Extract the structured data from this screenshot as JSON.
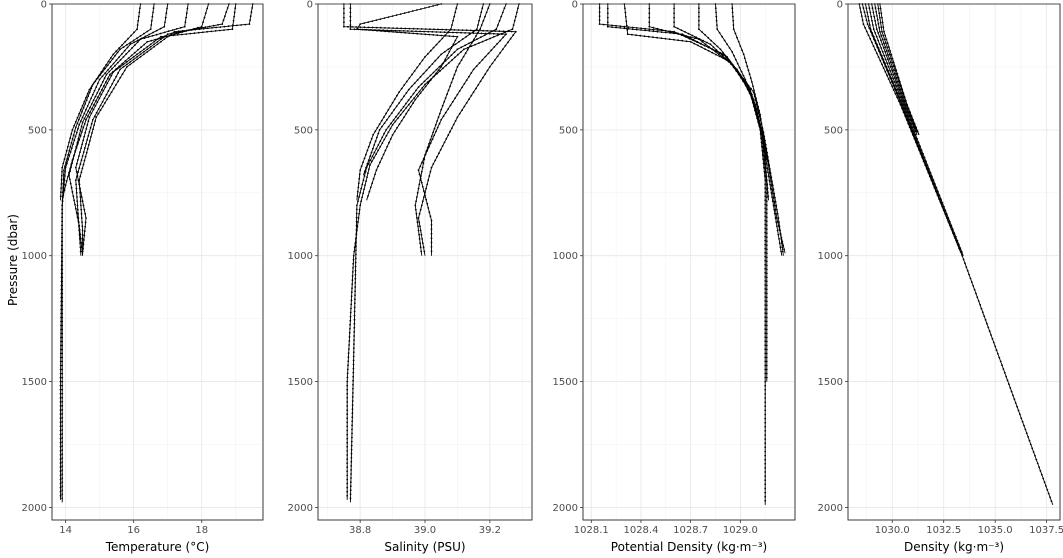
{
  "chart_data": [
    {
      "type": "line",
      "xlabel": "Temperature (°C)",
      "ylabel": "Pressure (dbar)",
      "xlim": [
        13.6,
        19.8
      ],
      "ylim": [
        0,
        2050
      ],
      "y_reversed": true,
      "grid": true,
      "x_ticks": [
        "14",
        "16",
        "18"
      ],
      "x_tick_values": [
        14,
        16,
        18
      ],
      "y_ticks": [
        "0",
        "500",
        "1000",
        "1500",
        "2000"
      ],
      "y_tick_values": [
        0,
        500,
        1000,
        1500,
        2000
      ],
      "series": [
        {
          "x": [
            19.5,
            19.4,
            17.2,
            15.8,
            14.9,
            14.4,
            14.5,
            14.5
          ],
          "y": [
            0,
            80,
            110,
            250,
            450,
            700,
            900,
            1000
          ]
        },
        {
          "x": [
            18.8,
            18.6,
            17.0,
            15.6,
            14.8,
            14.3,
            14.4,
            14.45
          ],
          "y": [
            0,
            80,
            120,
            260,
            460,
            700,
            900,
            1000
          ]
        },
        {
          "x": [
            17.6,
            17.5,
            16.2,
            15.2,
            14.5,
            14.1,
            14.4,
            14.5
          ],
          "y": [
            0,
            90,
            140,
            280,
            470,
            680,
            880,
            1000
          ]
        },
        {
          "x": [
            17.0,
            16.9,
            15.9,
            15.0,
            14.4,
            14.0,
            13.9,
            13.85,
            13.85
          ],
          "y": [
            0,
            90,
            160,
            300,
            480,
            650,
            800,
            1500,
            1970
          ]
        },
        {
          "x": [
            16.6,
            16.5,
            15.6,
            14.8,
            14.3,
            13.95,
            13.9,
            13.9,
            13.9
          ],
          "y": [
            0,
            100,
            180,
            320,
            490,
            660,
            800,
            1500,
            1980
          ]
        },
        {
          "x": [
            16.2,
            16.1,
            15.4,
            14.7,
            14.2,
            13.9,
            13.85
          ],
          "y": [
            0,
            100,
            200,
            340,
            500,
            650,
            780
          ]
        },
        {
          "x": [
            18.2,
            18.0,
            16.4,
            15.3,
            14.6,
            14.2,
            14.0,
            13.9
          ],
          "y": [
            0,
            90,
            150,
            280,
            460,
            620,
            720,
            780
          ]
        },
        {
          "x": [
            19.0,
            18.9,
            16.8,
            15.4,
            14.7,
            14.3,
            14.6,
            14.5
          ],
          "y": [
            0,
            100,
            130,
            270,
            450,
            650,
            850,
            990
          ]
        }
      ]
    },
    {
      "type": "line",
      "xlabel": "Salinity (PSU)",
      "xlim": [
        38.67,
        39.33
      ],
      "ylim": [
        0,
        2050
      ],
      "y_reversed": true,
      "grid": true,
      "x_ticks": [
        "38.8",
        "39.0",
        "39.2"
      ],
      "x_tick_values": [
        38.8,
        39.0,
        39.2
      ],
      "y_ticks": [
        "0",
        "500",
        "1000",
        "1500",
        "2000"
      ],
      "y_tick_values": [
        0,
        500,
        1000,
        1500,
        2000
      ],
      "series": [
        {
          "x": [
            38.75,
            38.75,
            39.28,
            39.2,
            39.1,
            39.02,
            38.98,
            39.0
          ],
          "y": [
            0,
            90,
            110,
            250,
            450,
            650,
            850,
            1000
          ]
        },
        {
          "x": [
            38.77,
            38.77,
            39.25,
            39.15,
            39.05,
            38.98,
            39.02,
            39.02
          ],
          "y": [
            0,
            100,
            120,
            260,
            460,
            660,
            860,
            1000
          ]
        },
        {
          "x": [
            39.29,
            39.27,
            39.12,
            39.0,
            38.9,
            38.83,
            38.8,
            38.78,
            38.76,
            38.76
          ],
          "y": [
            0,
            100,
            180,
            320,
            480,
            640,
            800,
            1000,
            1500,
            1970
          ]
        },
        {
          "x": [
            39.25,
            39.22,
            39.1,
            38.98,
            38.88,
            38.82,
            38.79,
            38.78,
            38.77
          ],
          "y": [
            0,
            100,
            180,
            330,
            500,
            650,
            800,
            1400,
            1980
          ]
        },
        {
          "x": [
            39.18,
            39.16,
            39.05,
            38.95,
            38.86,
            38.81
          ],
          "y": [
            0,
            100,
            200,
            340,
            500,
            680
          ]
        },
        {
          "x": [
            39.1,
            39.08,
            39.0,
            38.92,
            38.84,
            38.8,
            38.79
          ],
          "y": [
            0,
            100,
            210,
            350,
            520,
            660,
            780
          ]
        },
        {
          "x": [
            39.05,
            38.8,
            38.79,
            39.1,
            39.05,
            38.97,
            38.9,
            38.85,
            38.82
          ],
          "y": [
            0,
            80,
            100,
            130,
            250,
            380,
            520,
            660,
            780
          ]
        },
        {
          "x": [
            39.2,
            39.17,
            39.1,
            39.05,
            39.0,
            38.97,
            38.99
          ],
          "y": [
            0,
            100,
            250,
            420,
            600,
            800,
            1000
          ]
        }
      ]
    },
    {
      "type": "line",
      "xlabel": "Potential Density  (kg·m⁻³)",
      "xlim": [
        1028.05,
        1029.33
      ],
      "ylim": [
        0,
        2050
      ],
      "y_reversed": true,
      "grid": true,
      "x_ticks": [
        "1028.1",
        "1028.4",
        "1028.7",
        "1029.0"
      ],
      "x_tick_values": [
        1028.1,
        1028.4,
        1028.7,
        1029.0
      ],
      "y_ticks": [
        "0",
        "500",
        "1000",
        "1500",
        "2000"
      ],
      "y_tick_values": [
        0,
        500,
        1000,
        1500,
        2000
      ],
      "series": [
        {
          "x": [
            1028.15,
            1028.15,
            1028.6,
            1028.9,
            1029.05,
            1029.12,
            1029.15,
            1029.15,
            1029.15
          ],
          "y": [
            0,
            80,
            110,
            200,
            330,
            500,
            700,
            1500,
            1990
          ]
        },
        {
          "x": [
            1028.2,
            1028.2,
            1028.65,
            1028.92,
            1029.06,
            1029.13,
            1029.16,
            1029.16
          ],
          "y": [
            0,
            90,
            120,
            210,
            340,
            520,
            720,
            1500
          ]
        },
        {
          "x": [
            1028.45,
            1028.45,
            1028.75,
            1028.95,
            1029.07,
            1029.13,
            1029.2,
            1029.25
          ],
          "y": [
            0,
            90,
            140,
            240,
            360,
            520,
            800,
            1000
          ]
        },
        {
          "x": [
            1028.6,
            1028.6,
            1028.82,
            1028.98,
            1029.08,
            1029.14,
            1029.17
          ],
          "y": [
            0,
            90,
            160,
            260,
            380,
            540,
            780
          ]
        },
        {
          "x": [
            1028.75,
            1028.75,
            1028.88,
            1029.0,
            1029.09,
            1029.15,
            1029.22,
            1029.27
          ],
          "y": [
            0,
            100,
            180,
            280,
            400,
            560,
            850,
            990
          ]
        },
        {
          "x": [
            1028.85,
            1028.86,
            1028.95,
            1029.03,
            1029.1,
            1029.15
          ],
          "y": [
            0,
            100,
            190,
            300,
            420,
            600
          ]
        },
        {
          "x": [
            1028.95,
            1028.96,
            1029.02,
            1029.07,
            1029.12,
            1029.16
          ],
          "y": [
            0,
            100,
            200,
            310,
            440,
            620
          ]
        },
        {
          "x": [
            1028.3,
            1028.32,
            1028.7,
            1028.94,
            1029.08,
            1029.14,
            1029.23,
            1029.26
          ],
          "y": [
            0,
            120,
            150,
            230,
            350,
            510,
            850,
            1000
          ]
        }
      ]
    },
    {
      "type": "line",
      "xlabel": "Density (kg·m⁻³)",
      "xlim": [
        1027.85,
        1038.15
      ],
      "ylim": [
        0,
        2050
      ],
      "y_reversed": true,
      "grid": true,
      "x_ticks": [
        "1030.0",
        "1032.5",
        "1035.0",
        "1037.5"
      ],
      "x_tick_values": [
        1030.0,
        1032.5,
        1035.0,
        1037.5
      ],
      "y_ticks": [
        "0",
        "500",
        "1000",
        "1500",
        "2000"
      ],
      "y_tick_values": [
        0,
        500,
        1000,
        1500,
        2000
      ],
      "series": [
        {
          "x": [
            1028.4,
            1028.6,
            1030.4,
            1033.4,
            1037.8
          ],
          "y": [
            0,
            80,
            400,
            1000,
            1990
          ]
        },
        {
          "x": [
            1028.55,
            1028.8,
            1030.45,
            1033.35
          ],
          "y": [
            0,
            80,
            400,
            990
          ]
        },
        {
          "x": [
            1028.7,
            1028.95,
            1030.5,
            1033.4
          ],
          "y": [
            0,
            100,
            400,
            1000
          ]
        },
        {
          "x": [
            1028.85,
            1029.1,
            1030.55,
            1033.45
          ],
          "y": [
            0,
            100,
            400,
            1000
          ]
        },
        {
          "x": [
            1029.0,
            1029.25,
            1030.6,
            1031.2
          ],
          "y": [
            0,
            100,
            400,
            520
          ]
        },
        {
          "x": [
            1029.15,
            1029.4,
            1030.65,
            1031.2
          ],
          "y": [
            0,
            110,
            400,
            510
          ]
        },
        {
          "x": [
            1029.3,
            1029.5,
            1030.7,
            1031.3
          ],
          "y": [
            0,
            110,
            400,
            520
          ]
        },
        {
          "x": [
            1029.4,
            1029.6,
            1030.72,
            1031.3
          ],
          "y": [
            0,
            110,
            400,
            520
          ]
        }
      ]
    }
  ]
}
